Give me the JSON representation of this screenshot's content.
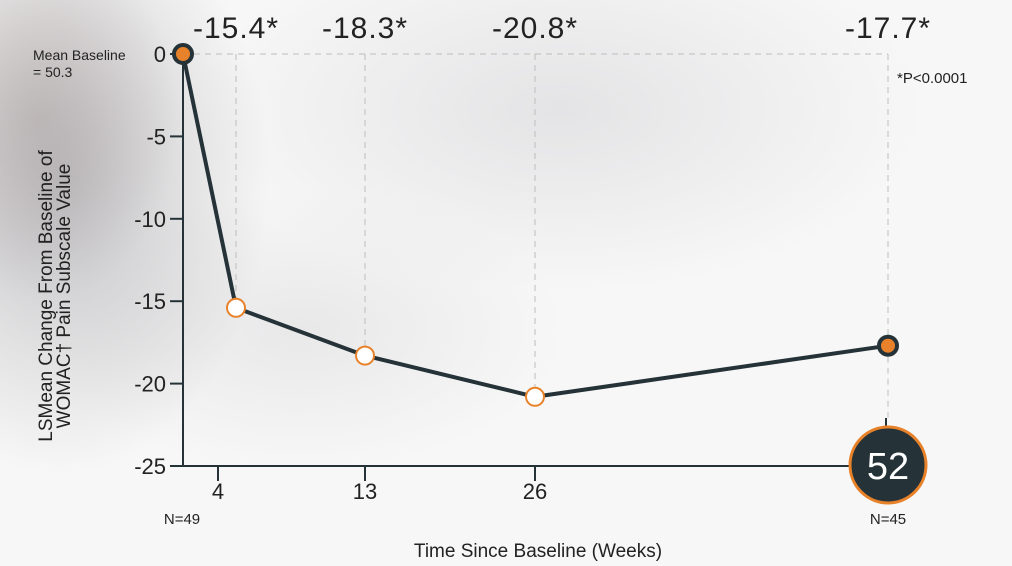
{
  "chart_data": {
    "type": "line",
    "xlabel": "Time Since Baseline (Weeks)",
    "ylabel_lines": [
      "LSMean Change From Baseline of",
      "WOMAC† Pain Subscale Value"
    ],
    "ylim": [
      -25,
      0
    ],
    "yticks": [
      0,
      -5,
      -10,
      -15,
      -20,
      -25
    ],
    "xticks": [
      4,
      13,
      26
    ],
    "points": [
      {
        "x": 0,
        "y": 0,
        "style": "filled"
      },
      {
        "x": 4,
        "y": -15.4,
        "style": "open",
        "label": "-15.4*"
      },
      {
        "x": 13,
        "y": -18.3,
        "style": "open",
        "label": "-18.3*"
      },
      {
        "x": 26,
        "y": -20.8,
        "style": "open",
        "label": "-20.8*"
      },
      {
        "x": 52,
        "y": -17.7,
        "style": "filled",
        "label": "-17.7*"
      }
    ],
    "baseline_note": [
      "Mean Baseline",
      "= 50.3"
    ],
    "significance_note": "*P<0.0001",
    "n_labels": [
      {
        "x": 0,
        "text": "N=49"
      },
      {
        "x": 52,
        "text": "N=45"
      }
    ],
    "highlight_week": "52",
    "colors": {
      "line": "#253238",
      "marker_orange": "#e8822a",
      "guide": "#bdbdbd",
      "badge_fill": "#253238",
      "badge_ring": "#e8822a"
    }
  }
}
